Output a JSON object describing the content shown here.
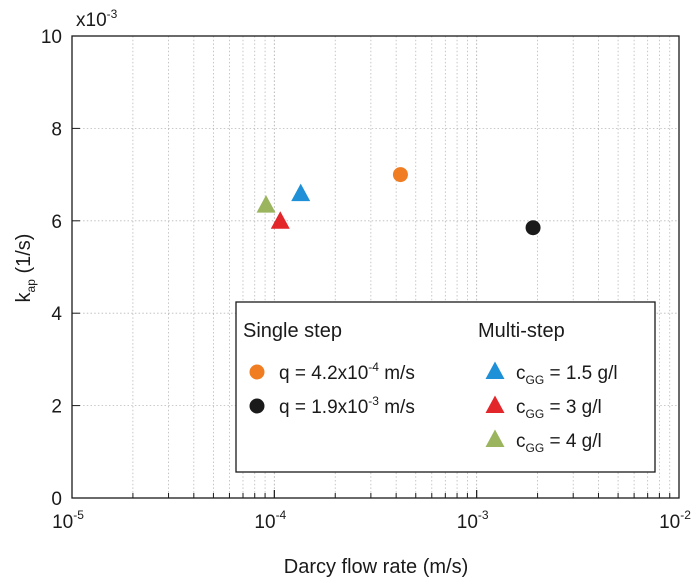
{
  "chart_data": {
    "type": "scatter",
    "xscale": "log",
    "xlim": [
      1e-05,
      0.01
    ],
    "ylim": [
      0,
      10
    ],
    "grid": true,
    "xlabel": "Darcy flow rate (m/s)",
    "ylabel": {
      "main": "k",
      "sub": "ap",
      "unit": " (1/s)"
    },
    "y_multiplier": {
      "base": "x10",
      "exp": "-3"
    },
    "x_ticks": [
      {
        "value": 1e-05,
        "base": "10",
        "exp": "-5"
      },
      {
        "value": 0.0001,
        "base": "10",
        "exp": "-4"
      },
      {
        "value": 0.001,
        "base": "10",
        "exp": "-3"
      },
      {
        "value": 0.01,
        "base": "10",
        "exp": "-2"
      }
    ],
    "y_ticks": [
      {
        "value": 0,
        "label": "0"
      },
      {
        "value": 2,
        "label": "2"
      },
      {
        "value": 4,
        "label": "4"
      },
      {
        "value": 6,
        "label": "6"
      },
      {
        "value": 8,
        "label": "8"
      },
      {
        "value": 10,
        "label": "10"
      }
    ],
    "series": [
      {
        "marker": "circle",
        "color": "#f07d21",
        "points": [
          {
            "x": 0.00042,
            "y": 7.0
          }
        ]
      },
      {
        "marker": "circle",
        "color": "#1a1a1a",
        "points": [
          {
            "x": 0.0019,
            "y": 5.85
          }
        ]
      },
      {
        "marker": "triangle",
        "color": "#1e90d8",
        "points": [
          {
            "x": 0.000135,
            "y": 6.6
          }
        ]
      },
      {
        "marker": "triangle",
        "color": "#e3262a",
        "points": [
          {
            "x": 0.000107,
            "y": 6.0
          }
        ]
      },
      {
        "marker": "triangle",
        "color": "#9bb55e",
        "points": [
          {
            "x": 9.1e-05,
            "y": 6.35
          }
        ]
      }
    ],
    "legend": {
      "placement": "bottom-right",
      "groups": [
        {
          "title": "Single step",
          "items": [
            {
              "series": 0,
              "parts": [
                {
                  "t": "q = 4.2x10"
                },
                {
                  "t": "-4",
                  "sup": true
                },
                {
                  "t": " m/s"
                }
              ]
            },
            {
              "series": 1,
              "parts": [
                {
                  "t": "q = 1.9x10"
                },
                {
                  "t": "-3",
                  "sup": true
                },
                {
                  "t": " m/s"
                }
              ]
            }
          ]
        },
        {
          "title": "Multi-step",
          "items": [
            {
              "series": 2,
              "parts": [
                {
                  "t": "c"
                },
                {
                  "t": "GG",
                  "sub": true
                },
                {
                  "t": " = 1.5 g/l"
                }
              ]
            },
            {
              "series": 3,
              "parts": [
                {
                  "t": "c"
                },
                {
                  "t": "GG",
                  "sub": true
                },
                {
                  "t": " =  3 g/l"
                }
              ]
            },
            {
              "series": 4,
              "parts": [
                {
                  "t": "c"
                },
                {
                  "t": "GG",
                  "sub": true
                },
                {
                  "t": " =  4 g/l"
                }
              ]
            }
          ]
        }
      ]
    }
  }
}
